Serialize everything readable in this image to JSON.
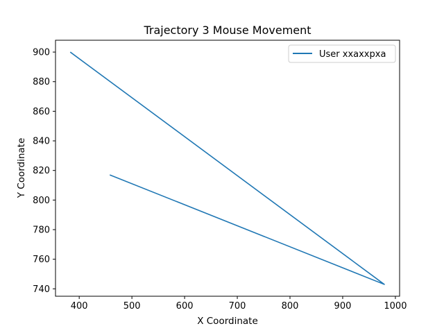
{
  "chart_data": {
    "type": "line",
    "title": "Trajectory 3 Mouse Movement",
    "xlabel": "X Coordinate",
    "ylabel": "Y Coordinate",
    "xlim": [
      355,
      1008
    ],
    "ylim": [
      735,
      908
    ],
    "xticks": [
      400,
      500,
      600,
      700,
      800,
      900,
      1000
    ],
    "yticks": [
      740,
      760,
      780,
      800,
      820,
      840,
      860,
      880,
      900
    ],
    "grid": false,
    "legend_position": "top-right",
    "series": [
      {
        "name": "User xxaxxpxa",
        "color": "#1f77b4",
        "x": [
          458,
          979,
          383
        ],
        "y": [
          817,
          743,
          900
        ]
      }
    ]
  }
}
